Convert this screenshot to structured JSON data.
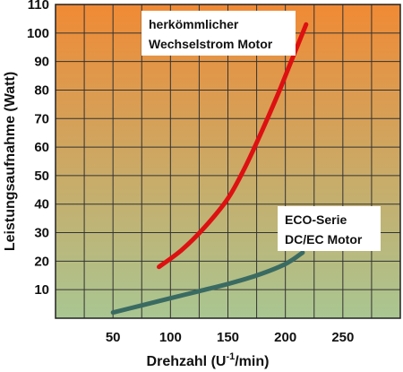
{
  "chart_data": {
    "type": "line",
    "title": "",
    "xlabel": "Drehzahl (U",
    "xlabel_sup": "-1",
    "xlabel_end": "/min)",
    "ylabel": "Leistungsaufnahme (Watt)",
    "xlim": [
      0,
      300
    ],
    "ylim": [
      0,
      110
    ],
    "x_ticks": [
      50,
      100,
      150,
      200,
      250
    ],
    "y_ticks": [
      10,
      20,
      30,
      40,
      50,
      60,
      70,
      80,
      90,
      100,
      110
    ],
    "grid": true,
    "series": [
      {
        "name": "herkömmlicher Wechselstrom Motor",
        "label_lines": [
          "herkömmlicher",
          "Wechselstrom Motor"
        ],
        "color": "#dd1111",
        "x": [
          90,
          110,
          130,
          150,
          165,
          180,
          195,
          208,
          218
        ],
        "y": [
          18,
          24,
          32,
          42,
          53,
          66,
          80,
          93,
          103
        ]
      },
      {
        "name": "ECO-Serie DC/EC Motor",
        "label_lines": [
          "ECO-Serie",
          "DC/EC Motor"
        ],
        "color": "#3a6b62",
        "x": [
          50,
          75,
          100,
          125,
          150,
          175,
          200,
          215
        ],
        "y": [
          2,
          4.5,
          7,
          9.5,
          12,
          15,
          19,
          23
        ]
      }
    ],
    "colors": {
      "background_top": "#f08a35",
      "background_bottom": "#a9c692",
      "grid": "#333333"
    }
  }
}
